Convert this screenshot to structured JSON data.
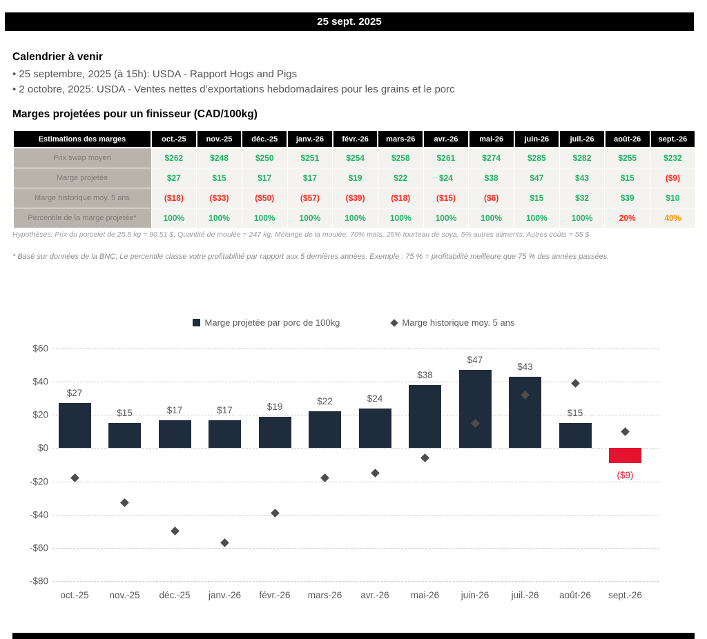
{
  "header": {
    "date": "25 sept. 2025"
  },
  "calendar": {
    "title": "Calendrier à venir",
    "items": [
      "• 25 septembre, 2025 (à 15h): USDA - Rapport Hogs and Pigs",
      "• 2 octobre, 2025: USDA - Ventes nettes d’exportations hebdomadaires pour les grains et le porc"
    ]
  },
  "table": {
    "title": "Marges projetées pour un finisseur (CAD/100kg)",
    "header_label": "Estimations des marges",
    "months": [
      "oct.-25",
      "nov.-25",
      "déc.-25",
      "janv.-26",
      "févr.-26",
      "mars-26",
      "avr.-26",
      "mai-26",
      "juin-26",
      "juil.-26",
      "août-26",
      "sept.-26"
    ],
    "rows": [
      {
        "label": "Prix swap moyen",
        "values": [
          "$262",
          "$248",
          "$250",
          "$251",
          "$254",
          "$258",
          "$261",
          "$274",
          "$285",
          "$282",
          "$255",
          "$232"
        ],
        "value_colors": [
          "g",
          "g",
          "g",
          "g",
          "g",
          "g",
          "g",
          "g",
          "g",
          "g",
          "g",
          "g"
        ]
      },
      {
        "label": "Marge projetée",
        "values": [
          "$27",
          "$15",
          "$17",
          "$17",
          "$19",
          "$22",
          "$24",
          "$38",
          "$47",
          "$43",
          "$15",
          "($9)"
        ],
        "value_colors": [
          "g",
          "g",
          "g",
          "g",
          "g",
          "g",
          "g",
          "g",
          "g",
          "g",
          "g",
          "r"
        ]
      },
      {
        "label": "Marge historique moy. 5 ans",
        "values": [
          "($18)",
          "($33)",
          "($50)",
          "($57)",
          "($39)",
          "($18)",
          "($15)",
          "($6)",
          "$15",
          "$32",
          "$39",
          "$10"
        ],
        "value_colors": [
          "r",
          "r",
          "r",
          "r",
          "r",
          "r",
          "r",
          "r",
          "g",
          "g",
          "g",
          "g"
        ]
      },
      {
        "label": "Percentile de la marge projetée*",
        "values": [
          "100%",
          "100%",
          "100%",
          "100%",
          "100%",
          "100%",
          "100%",
          "100%",
          "100%",
          "100%",
          "20%",
          "40%"
        ],
        "value_colors": [
          "g",
          "g",
          "g",
          "g",
          "g",
          "g",
          "g",
          "g",
          "g",
          "g",
          "r",
          "o"
        ]
      }
    ],
    "hypotheses": "Hypothèses: Prix du porcelet de 25.5 kg = 90.51 $; Quantité de moulée = 247 kg; Mélange de la moulée: 70% maïs, 25% tourteau de soya, 5% autres aliments; Autres coûts = 55 $",
    "footnote": "* Basé sur données de la BNC; Le percentile classe votre profitabilité par rapport aux 5 dernières années. Exemple : 75 % = profitabilité meilleure que 75 % des années passées."
  },
  "chart_data": {
    "type": "bar",
    "categories": [
      "oct.-25",
      "nov.-25",
      "déc.-25",
      "janv.-26",
      "févr.-26",
      "mars-26",
      "avr.-26",
      "mai-26",
      "juin-26",
      "juil.-26",
      "août-26",
      "sept.-26"
    ],
    "series": [
      {
        "name": "Marge projetée par porc de 100kg",
        "type": "bar",
        "values": [
          27,
          15,
          17,
          17,
          19,
          22,
          24,
          38,
          47,
          43,
          15,
          -9
        ],
        "labels": [
          "$27",
          "$15",
          "$17",
          "$17",
          "$19",
          "$22",
          "$24",
          "$38",
          "$47",
          "$43",
          "$15",
          "($9)"
        ]
      },
      {
        "name": "Marge historique moy. 5 ans",
        "type": "scatter",
        "values": [
          -18,
          -33,
          -50,
          -57,
          -39,
          -18,
          -15,
          -6,
          15,
          32,
          39,
          10
        ]
      }
    ],
    "ylim": [
      -80,
      60
    ],
    "yticks": [
      60,
      40,
      20,
      0,
      -20,
      -40,
      -60,
      -80
    ],
    "ytick_labels": [
      "$60",
      "$40",
      "$20",
      "$0",
      "-$20",
      "-$40",
      "-$60",
      "-$80"
    ],
    "grid": "dashed horizontal",
    "legend_position": "top center"
  },
  "colors": {
    "green": "#1eb269",
    "red": "#ff2a23",
    "orange": "#ff8d00",
    "bar_positive": "#1f2c3b",
    "bar_negative": "#e5132d",
    "marker": "#4d4d4d",
    "axis_text": "#595959"
  }
}
